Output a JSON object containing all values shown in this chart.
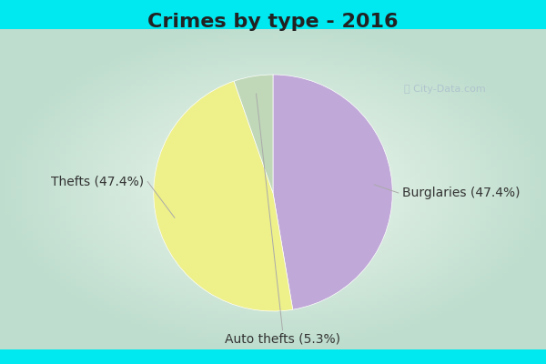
{
  "title": "Crimes by type - 2016",
  "slices": [
    {
      "label": "Burglaries (47.4%)",
      "value": 47.4,
      "color": "#c0a8d8"
    },
    {
      "label": "Thefts (47.4%)",
      "value": 47.4,
      "color": "#eef08a"
    },
    {
      "label": "Auto thefts (5.3%)",
      "value": 5.3,
      "color": "#c0d8b8"
    }
  ],
  "bg_cyan": "#00e8f0",
  "bg_main_center": "#e8f4ee",
  "bg_main_edge": "#b8ddd0",
  "title_fontsize": 16,
  "label_fontsize": 10,
  "watermark": "ⓘ City-Data.com",
  "startangle": 90,
  "title_color": "#222222"
}
